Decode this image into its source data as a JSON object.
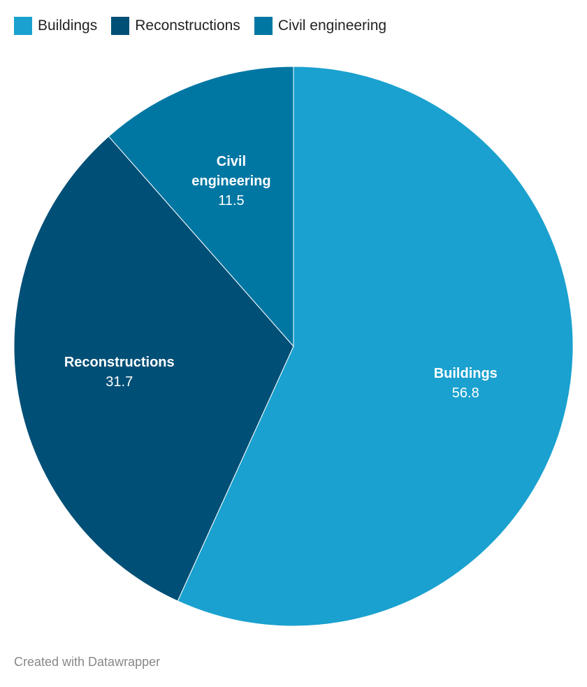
{
  "chart_data": {
    "type": "pie",
    "categories": [
      "Buildings",
      "Reconstructions",
      "Civil engineering"
    ],
    "values": [
      56.8,
      31.7,
      11.5
    ],
    "colors": [
      "#1aa1cf",
      "#004f76",
      "#0077a3"
    ],
    "legend": "top-left",
    "footer": "Created with Datawrapper"
  }
}
